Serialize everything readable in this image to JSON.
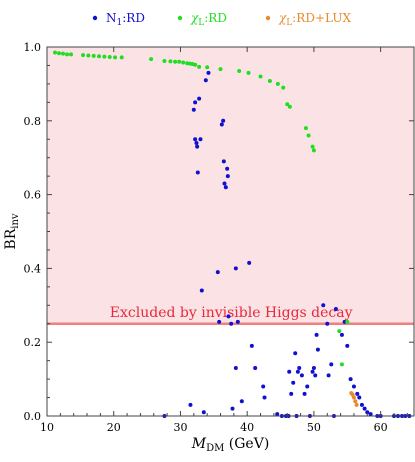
{
  "chart_data": {
    "type": "scatter",
    "xlabel": {
      "main": "M",
      "sub": "DM",
      "unit": " (GeV)"
    },
    "ylabel": {
      "main": "BR",
      "sub": "inv"
    },
    "xlim": [
      10,
      65
    ],
    "ylim": [
      0,
      1
    ],
    "xticks": [
      10,
      20,
      30,
      40,
      50,
      60
    ],
    "yticks": [
      0.0,
      0.2,
      0.4,
      0.6,
      0.8,
      1.0
    ],
    "ytick_labels": [
      "0.0",
      "0.2",
      "0.4",
      "0.6",
      "0.8",
      "1.0"
    ],
    "grid": false,
    "legend_placement": "top",
    "excluded_region": {
      "from": 0.25,
      "to": 1.0,
      "label": "Excluded by invisible Higgs decay",
      "fill": "#fbe3e5",
      "line_color": "#f08080"
    },
    "series": [
      {
        "name_main": "N",
        "name_sub": "1",
        "name_rest": ":RD",
        "color": "#1010d0",
        "points": [
          [
            27.6,
            0.0
          ],
          [
            31.5,
            0.03
          ],
          [
            32.0,
            0.83
          ],
          [
            32.2,
            0.85
          ],
          [
            32.2,
            0.75
          ],
          [
            32.4,
            0.74
          ],
          [
            32.5,
            0.73
          ],
          [
            32.6,
            0.66
          ],
          [
            32.8,
            0.86
          ],
          [
            33.0,
            0.75
          ],
          [
            33.2,
            0.34
          ],
          [
            33.5,
            0.01
          ],
          [
            33.8,
            0.91
          ],
          [
            34.2,
            0.93
          ],
          [
            35.6,
            0.39
          ],
          [
            35.8,
            0.255
          ],
          [
            36.2,
            0.79
          ],
          [
            36.4,
            0.8
          ],
          [
            36.5,
            0.69
          ],
          [
            36.6,
            0.63
          ],
          [
            36.8,
            0.62
          ],
          [
            37.0,
            0.67
          ],
          [
            37.1,
            0.65
          ],
          [
            37.2,
            0.27
          ],
          [
            37.6,
            0.25
          ],
          [
            37.8,
            0.02
          ],
          [
            38.3,
            0.4
          ],
          [
            38.6,
            0.255
          ],
          [
            38.3,
            0.13
          ],
          [
            39.2,
            0.04
          ],
          [
            40.3,
            0.415
          ],
          [
            40.7,
            0.19
          ],
          [
            41.2,
            0.13
          ],
          [
            42.4,
            0.08
          ],
          [
            42.6,
            0.05
          ],
          [
            44.5,
            0.005
          ],
          [
            45.2,
            0.0
          ],
          [
            45.8,
            0.0
          ],
          [
            46.2,
            0.0
          ],
          [
            46.3,
            0.12
          ],
          [
            46.6,
            0.06
          ],
          [
            46.9,
            0.09
          ],
          [
            47.2,
            0.17
          ],
          [
            47.4,
            0.0
          ],
          [
            47.6,
            0.12
          ],
          [
            47.8,
            0.13
          ],
          [
            48.2,
            0.11
          ],
          [
            48.6,
            0.06
          ],
          [
            49.0,
            0.08
          ],
          [
            49.4,
            0.0
          ],
          [
            49.8,
            0.12
          ],
          [
            50.0,
            0.13
          ],
          [
            50.2,
            0.11
          ],
          [
            50.4,
            0.22
          ],
          [
            50.6,
            0.18
          ],
          [
            51.4,
            0.3
          ],
          [
            52.0,
            0.25
          ],
          [
            52.2,
            0.11
          ],
          [
            52.6,
            0.14
          ],
          [
            53.0,
            0.0
          ],
          [
            53.3,
            0.29
          ],
          [
            54.2,
            0.22
          ],
          [
            54.6,
            0.255
          ],
          [
            55.0,
            0.19
          ],
          [
            55.5,
            0.1
          ],
          [
            56.0,
            0.08
          ],
          [
            56.5,
            0.06
          ],
          [
            56.8,
            0.05
          ],
          [
            57.2,
            0.03
          ],
          [
            57.6,
            0.02
          ],
          [
            58.0,
            0.01
          ],
          [
            58.5,
            0.005
          ],
          [
            59.5,
            0.0
          ],
          [
            60.0,
            0.0
          ],
          [
            62.0,
            0.0
          ],
          [
            62.6,
            0.0
          ],
          [
            63.2,
            0.0
          ],
          [
            63.7,
            0.0
          ],
          [
            64.3,
            0.0
          ]
        ]
      },
      {
        "name_main": "χ",
        "name_sub": "L",
        "name_rest": ":RD",
        "color": "#22dd22",
        "points": [
          [
            11.2,
            0.985
          ],
          [
            11.8,
            0.983
          ],
          [
            12.4,
            0.982
          ],
          [
            13.0,
            0.98
          ],
          [
            13.6,
            0.98
          ],
          [
            15.4,
            0.978
          ],
          [
            16.2,
            0.977
          ],
          [
            17.0,
            0.976
          ],
          [
            17.8,
            0.975
          ],
          [
            18.6,
            0.974
          ],
          [
            19.4,
            0.973
          ],
          [
            20.2,
            0.972
          ],
          [
            21.2,
            0.972
          ],
          [
            25.6,
            0.967
          ],
          [
            27.6,
            0.962
          ],
          [
            28.5,
            0.961
          ],
          [
            29.2,
            0.96
          ],
          [
            29.8,
            0.96
          ],
          [
            30.4,
            0.958
          ],
          [
            31.0,
            0.956
          ],
          [
            31.4,
            0.955
          ],
          [
            31.8,
            0.954
          ],
          [
            32.2,
            0.952
          ],
          [
            32.8,
            0.946
          ],
          [
            34.0,
            0.945
          ],
          [
            36.0,
            0.94
          ],
          [
            38.8,
            0.935
          ],
          [
            40.2,
            0.93
          ],
          [
            42.0,
            0.92
          ],
          [
            43.4,
            0.908
          ],
          [
            44.6,
            0.9
          ],
          [
            45.4,
            0.89
          ],
          [
            46.0,
            0.845
          ],
          [
            46.4,
            0.838
          ],
          [
            48.8,
            0.78
          ],
          [
            49.2,
            0.76
          ],
          [
            49.8,
            0.73
          ],
          [
            50.0,
            0.72
          ],
          [
            53.8,
            0.23
          ],
          [
            54.2,
            0.14
          ],
          [
            55.0,
            0.255
          ]
        ]
      },
      {
        "name_main": "χ",
        "name_sub": "L",
        "name_rest": ":RD+LUX",
        "color": "#e88a2e",
        "points": [
          [
            55.6,
            0.062
          ],
          [
            55.8,
            0.058
          ],
          [
            56.0,
            0.05
          ],
          [
            56.2,
            0.04
          ],
          [
            56.4,
            0.03
          ]
        ]
      }
    ]
  }
}
